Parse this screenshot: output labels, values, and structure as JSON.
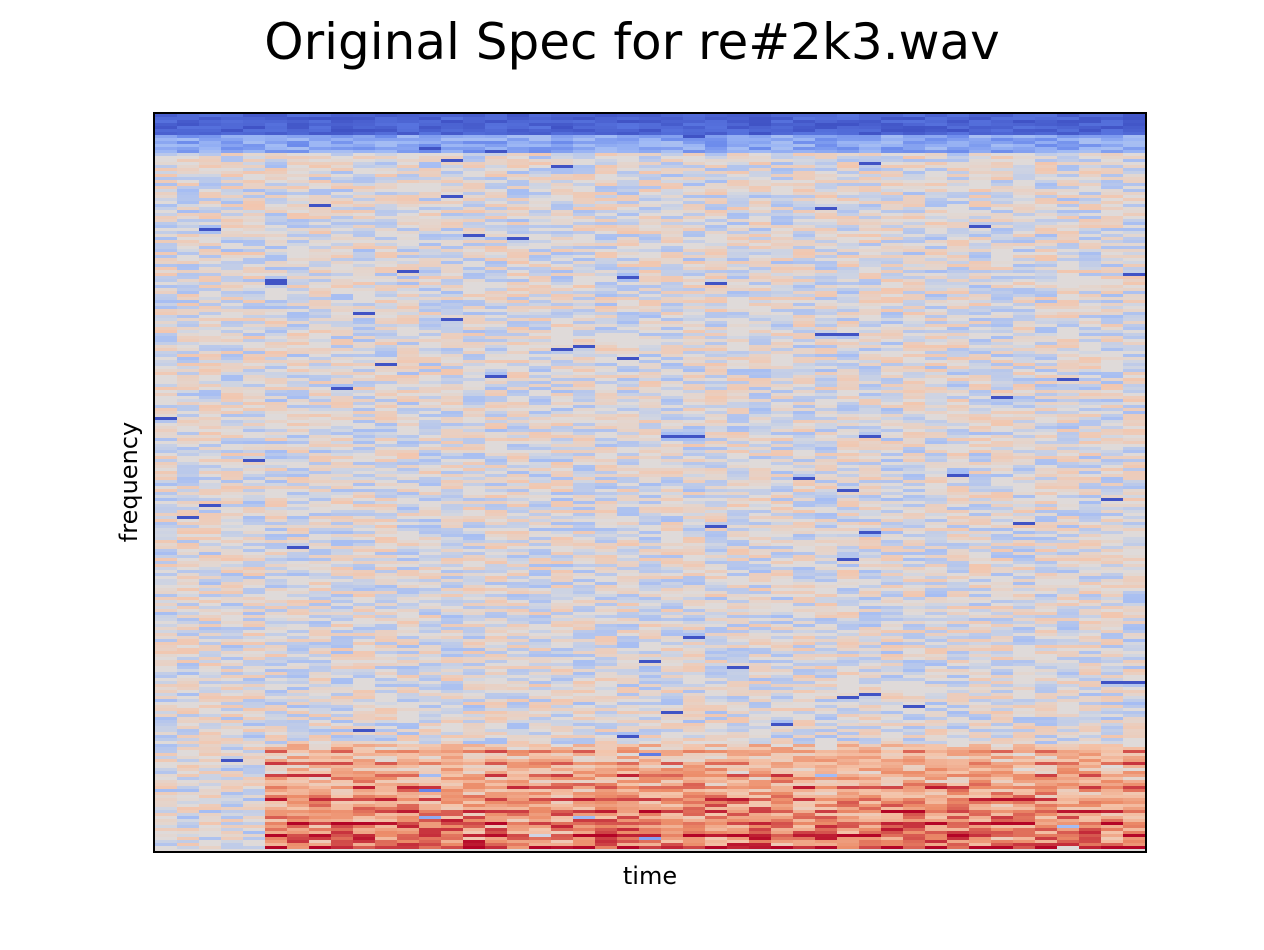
{
  "chart_data": {
    "type": "heatmap",
    "title": "Original Spec for re#2k3.wav",
    "xlabel": "time",
    "ylabel": "frequency",
    "x_ticks_visible": false,
    "y_ticks_visible": false,
    "colormap": "coolwarm",
    "colors": {
      "low": "#3b4cc0",
      "mid": "#dddcdc",
      "high": "#b40426"
    },
    "grid": false,
    "legend": "none",
    "description_bands": [
      {
        "region": "top",
        "level": "low"
      },
      {
        "region": "middle",
        "level": "mid"
      },
      {
        "region": "bottom",
        "level": "high"
      }
    ]
  }
}
